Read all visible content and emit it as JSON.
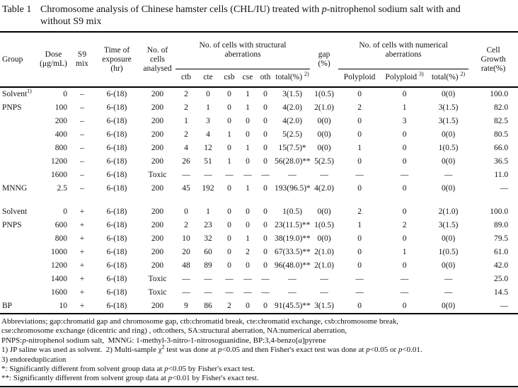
{
  "title": {
    "label": "Table 1",
    "text": "Chromosome analysis of Chinese hamster cells (CHL/IU) treated with _{p}-nitrophenol sodium salt with and\nwithout S9 mix"
  },
  "table": {
    "headers": {
      "group": "Group",
      "dose": "Dose\n(μg/mL)",
      "s9_mix": "S9\nmix",
      "exposure": "Time of\nexposure\n(hr)",
      "cells_analysed": "No. of\ncells\nanalysed",
      "structural": "No. of cells with structural\naberrations",
      "gap": "gap\n(%)",
      "numerical": "No. of cells with numerical\naberrations",
      "growth_rate": "Cell\nGrowth\nrate(%)"
    },
    "subheaders": {
      "ctb": "ctb",
      "cte": "cte",
      "csb": "csb",
      "cse": "cse",
      "oth": "oth",
      "sa_total": "total(%) ^{2)}",
      "polyploid": "Polyploid",
      "polyploid_endo": "Polyploid ^{3)}",
      "na_total": "total(%) ^{2)}"
    },
    "column_keys": [
      "group",
      "dose",
      "s9-mix",
      "exposure",
      "cells-analysed",
      "ctb",
      "cte",
      "csb",
      "cse",
      "oth",
      "sa-total",
      "gap",
      "polyploid",
      "polyploid-endoreduplication",
      "na-total",
      "growth-rate"
    ],
    "rows": [
      {
        "cells": [
          "Solvent^{1)}",
          "0",
          "–",
          "6-(18)",
          "200",
          "2",
          "0",
          "0",
          "1",
          "0",
          "3(1.5)",
          "1(0.5)",
          "0",
          "0",
          "0(0)",
          "100.0"
        ]
      },
      {
        "cells": [
          "PNPS",
          "100",
          "–",
          "6-(18)",
          "200",
          "2",
          "1",
          "0",
          "1",
          "0",
          "4(2.0)",
          "2(1.0)",
          "2",
          "1",
          "3(1.5)",
          "82.0"
        ]
      },
      {
        "cells": [
          "",
          "200",
          "–",
          "6-(18)",
          "200",
          "1",
          "3",
          "0",
          "0",
          "0",
          "4(2.0)",
          "0(0)",
          "0",
          "3",
          "3(1.5)",
          "82.5"
        ]
      },
      {
        "cells": [
          "",
          "400",
          "–",
          "6-(18)",
          "200",
          "2",
          "4",
          "1",
          "0",
          "0",
          "5(2.5)",
          "0(0)",
          "0",
          "0",
          "0(0)",
          "80.5"
        ]
      },
      {
        "cells": [
          "",
          "800",
          "–",
          "6-(18)",
          "200",
          "4",
          "12",
          "0",
          "1",
          "0",
          "15(7.5)*",
          "0(0)",
          "1",
          "0",
          "1(0.5)",
          "66.0"
        ]
      },
      {
        "cells": [
          "",
          "1200",
          "–",
          "6-(18)",
          "200",
          "26",
          "51",
          "1",
          "0",
          "0",
          "56(28.0)**",
          "5(2.5)",
          "0",
          "0",
          "0(0)",
          "36.5"
        ]
      },
      {
        "cells": [
          "",
          "1600",
          "–",
          "6-(18)",
          "Toxic",
          "—",
          "—",
          "—",
          "—",
          "—",
          "—",
          "—",
          "—",
          "—",
          "—",
          "11.0"
        ]
      },
      {
        "cells": [
          "MNNG",
          "2.5",
          "–",
          "6-(18)",
          "200",
          "45",
          "192",
          "0",
          "1",
          "0",
          "193(96.5)**",
          "4(2.0)",
          "0",
          "0",
          "0(0)",
          "—"
        ]
      },
      {
        "spacer": true
      },
      {
        "cells": [
          "Solvent",
          "0",
          "+",
          "6-(18)",
          "200",
          "0",
          "1",
          "0",
          "0",
          "0",
          "1(0.5)",
          "0(0)",
          "2",
          "0",
          "2(1.0)",
          "100.0"
        ]
      },
      {
        "cells": [
          "PNPS",
          "600",
          "+",
          "6-(18)",
          "200",
          "2",
          "23",
          "0",
          "0",
          "0",
          "23(11.5)**",
          "1(0.5)",
          "1",
          "2",
          "3(1.5)",
          "89.0"
        ]
      },
      {
        "cells": [
          "",
          "800",
          "+",
          "6-(18)",
          "200",
          "10",
          "32",
          "0",
          "1",
          "0",
          "38(19.0)**",
          "0(0)",
          "0",
          "0",
          "0(0)",
          "79.5"
        ]
      },
      {
        "cells": [
          "",
          "1000",
          "+",
          "6-(18)",
          "200",
          "20",
          "60",
          "0",
          "2",
          "0",
          "67(33.5)**",
          "2(1.0)",
          "0",
          "1",
          "1(0.5)",
          "61.0"
        ]
      },
      {
        "cells": [
          "",
          "1200",
          "+",
          "6-(18)",
          "200",
          "48",
          "89",
          "0",
          "0",
          "0",
          "96(48.0)**",
          "2(1.0)",
          "0",
          "0",
          "0(0)",
          "42.0"
        ]
      },
      {
        "cells": [
          "",
          "1400",
          "+",
          "6-(18)",
          "Toxic",
          "—",
          "—",
          "—",
          "—",
          "—",
          "—",
          "—",
          "—",
          "—",
          "—",
          "25.0"
        ]
      },
      {
        "cells": [
          "",
          "1600",
          "+",
          "6-(18)",
          "Toxic",
          "—",
          "—",
          "—",
          "—",
          "—",
          "—",
          "—",
          "—",
          "—",
          "—",
          "14.5"
        ]
      },
      {
        "cells": [
          "BP",
          "10",
          "+",
          "6-(18)",
          "200",
          "9",
          "86",
          "2",
          "0",
          "0",
          "91(45.5)**",
          "3(1.5)",
          "0",
          "0",
          "0(0)",
          "—"
        ]
      }
    ]
  },
  "footnotes": [
    "Abbreviations; gap:chromatid gap and chromosome gap, ctb:chromatid break, cte:chromatid exchange, csb:chromosome break,",
    "cse:chromosome exchange (dicentric and ring) , oth:others, SA:structural aberration, NA:numerical aberration,",
    "PNPS:_{p}-nitrophenol sodium salt,  MNNG: 1-methyl-3-nitro-1-nitrosoguanidine, BP:3,4-benzo[_{a}]pyrene",
    "1) JP saline was used as solvent.  2) Multi-sample χ^{2} test was done at _{p}<0.05 and then Fisher's exact test was done at _{p}<0.05 or _{p}<0.01.",
    "3) endoreduplication",
    "*: Significantly different from solvent group data at _{p}<0.05 by Fisher's exact test.",
    "**: Significantly different from solvent group data at _{p}<0.01 by Fisher's exact test."
  ]
}
